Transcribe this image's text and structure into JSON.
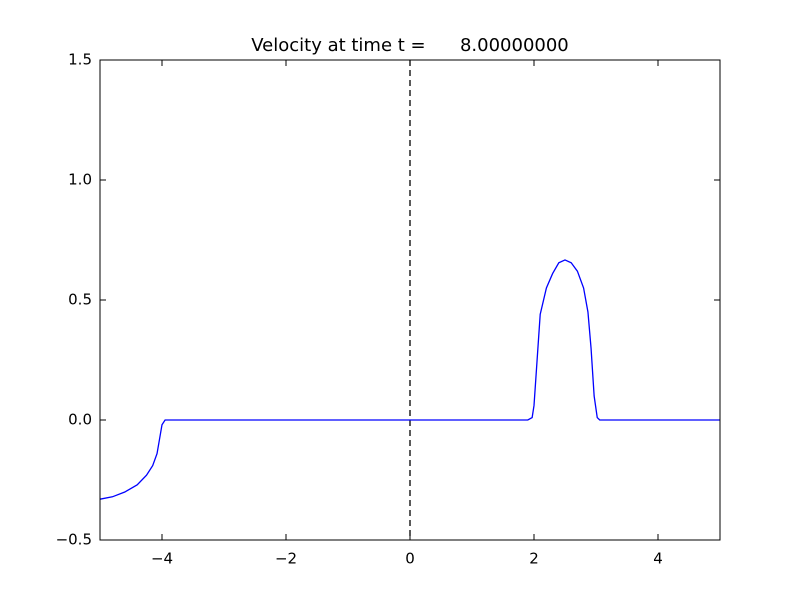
{
  "chart_data": {
    "type": "line",
    "title": "Velocity at time t =      8.00000000",
    "x": [
      -5,
      -4.8,
      -4.6,
      -4.4,
      -4.25,
      -4.15,
      -4.08,
      -4.04,
      -4.0,
      -3.95,
      1.9,
      1.97,
      2.0,
      2.05,
      2.1,
      2.2,
      2.3,
      2.4,
      2.5,
      2.6,
      2.7,
      2.8,
      2.87,
      2.92,
      2.97,
      3.02,
      3.06,
      5
    ],
    "series": [
      {
        "color": "#0000ff",
        "values": [
          -0.33,
          -0.32,
          -0.3,
          -0.27,
          -0.23,
          -0.19,
          -0.14,
          -0.08,
          -0.02,
          0,
          0,
          0.01,
          0.06,
          0.25,
          0.44,
          0.55,
          0.61,
          0.655,
          0.667,
          0.655,
          0.62,
          0.55,
          0.45,
          0.3,
          0.1,
          0.01,
          0,
          0
        ]
      }
    ],
    "xlim": [
      -5,
      5
    ],
    "ylim": [
      -0.5,
      1.5
    ],
    "xticks": [
      {
        "value": -4,
        "label": "−4"
      },
      {
        "value": -2,
        "label": "−2"
      },
      0,
      2,
      4
    ],
    "yticks": [
      {
        "value": -0.5,
        "label": "−0.5"
      },
      {
        "value": 0,
        "label": "0.0"
      },
      0.5,
      {
        "value": 1,
        "label": "1.0"
      },
      1.5
    ],
    "vlines": [
      0
    ],
    "grid": false
  }
}
